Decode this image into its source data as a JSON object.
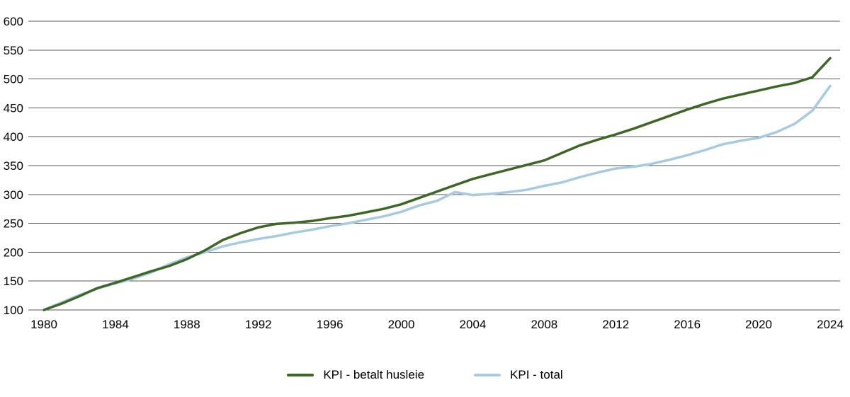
{
  "chart_data": {
    "type": "line",
    "title": "",
    "xlabel": "",
    "ylabel": "",
    "x_range": [
      1980,
      2024
    ],
    "y_range": [
      100,
      600
    ],
    "x_interval": 1,
    "x_ticks": [
      1980,
      1984,
      1988,
      1992,
      1996,
      2000,
      2004,
      2008,
      2012,
      2016,
      2020,
      2024
    ],
    "y_ticks": [
      100,
      150,
      200,
      250,
      300,
      350,
      400,
      450,
      500,
      550,
      600
    ],
    "grid": "horizontal",
    "legend_position": "bottom-center",
    "background_color": "#ffffff",
    "gridline_color": "#595959",
    "series": [
      {
        "name": "KPI - betalt husleie",
        "color": "#3e6625",
        "x_start": 1980,
        "values": [
          100,
          111,
          124,
          138,
          147,
          157,
          167,
          176,
          188,
          203,
          221,
          233,
          243,
          249,
          251,
          254,
          259,
          263,
          269,
          275,
          283,
          294,
          305,
          316,
          327,
          335,
          343,
          351,
          359,
          372,
          385,
          395,
          404,
          414,
          425,
          436,
          447,
          457,
          466,
          473,
          480,
          487,
          493,
          503,
          536
        ]
      },
      {
        "name": "KPI - total",
        "color": "#a7cae3",
        "x_start": 1980,
        "values": [
          100,
          113,
          126,
          137,
          146,
          154,
          165,
          179,
          191,
          200,
          210,
          217,
          223,
          228,
          234,
          239,
          245,
          250,
          256,
          262,
          270,
          281,
          289,
          304,
          299,
          301,
          304,
          308,
          315,
          321,
          330,
          338,
          345,
          348,
          353,
          360,
          368,
          377,
          387,
          393,
          398,
          408,
          422,
          445,
          488
        ]
      }
    ]
  }
}
